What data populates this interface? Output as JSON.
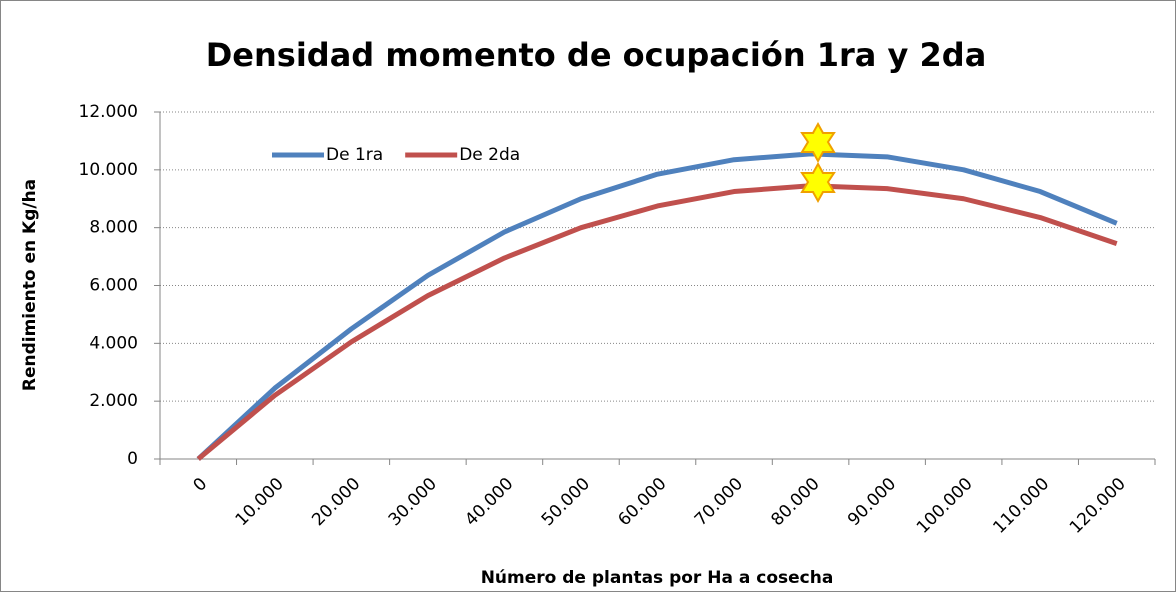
{
  "chart_data": {
    "type": "line",
    "title": "Densidad momento de ocupación 1ra y 2da",
    "x_label": "Número de plantas por Ha a cosecha",
    "y_label": "Rendimiento en Kg/ha",
    "categories": [
      "0",
      "10.000",
      "20.000",
      "30.000",
      "40.000",
      "50.000",
      "60.000",
      "70.000",
      "80.000",
      "90.000",
      "100.000",
      "110.000",
      "120.000"
    ],
    "series": [
      {
        "name": "De 1ra",
        "color": "#4f81bd",
        "values": [
          0,
          2450,
          4500,
          6350,
          7850,
          9000,
          9850,
          10350,
          10550,
          10450,
          10000,
          9250,
          8150
        ]
      },
      {
        "name": "De 2da",
        "color": "#c0504d",
        "values": [
          0,
          2200,
          4050,
          5650,
          6950,
          8000,
          8750,
          9250,
          9450,
          9350,
          9000,
          8350,
          7450
        ]
      }
    ],
    "ylim": [
      0,
      12000
    ],
    "yticks": [
      0,
      {
        "value": 2000,
        "label": "2.000"
      },
      {
        "value": 4000,
        "label": "4.000"
      },
      {
        "value": 6000,
        "label": "6.000"
      },
      {
        "value": 8000,
        "label": "8.000"
      },
      {
        "value": 10000,
        "label": "10.000"
      },
      {
        "value": 12000,
        "label": "12.000"
      }
    ],
    "grid": true,
    "legend": "top-left"
  }
}
